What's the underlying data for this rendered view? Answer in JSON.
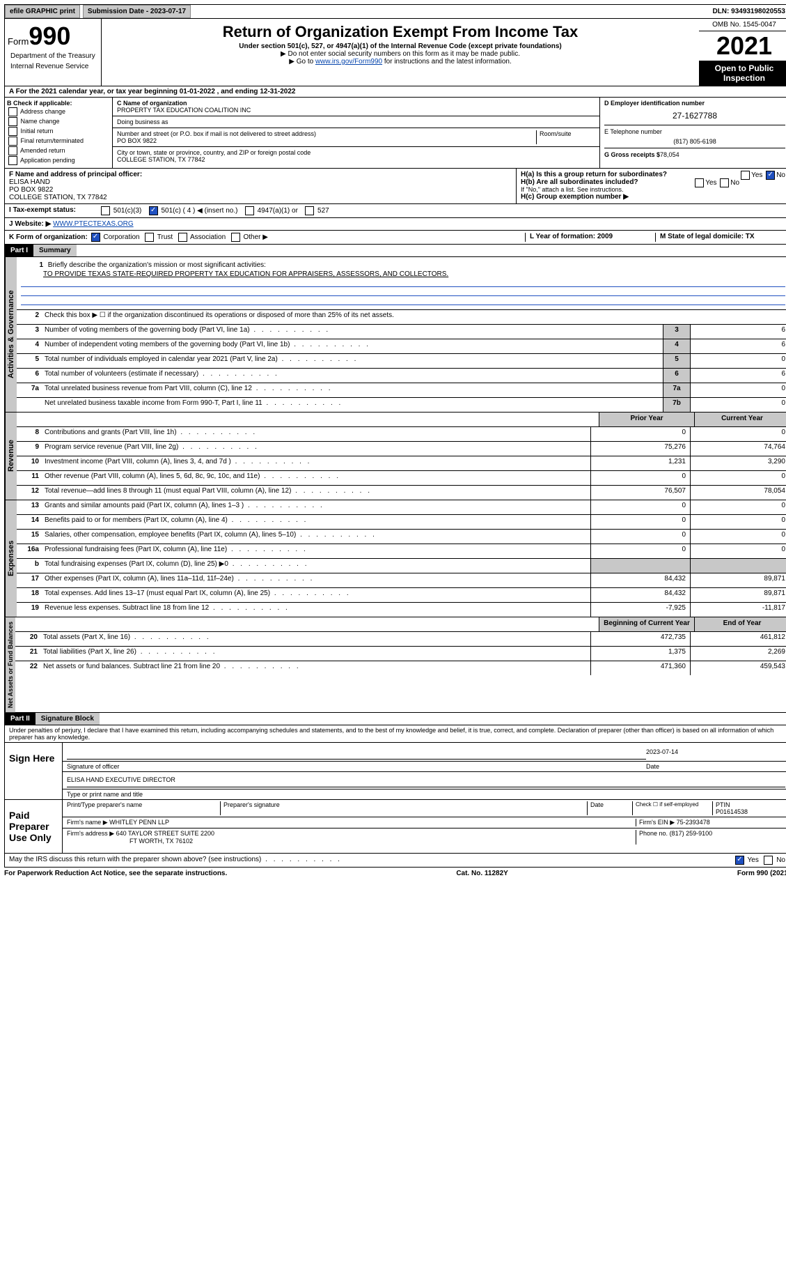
{
  "topbar": {
    "efile": "efile GRAPHIC print",
    "submission_label": "Submission Date - 2023-07-17",
    "dln": "DLN: 93493198020553"
  },
  "header": {
    "form_prefix": "Form",
    "form_no": "990",
    "title": "Return of Organization Exempt From Income Tax",
    "subtitle": "Under section 501(c), 527, or 4947(a)(1) of the Internal Revenue Code (except private foundations)",
    "note1": "▶ Do not enter social security numbers on this form as it may be made public.",
    "note2_pre": "▶ Go to ",
    "note2_link": "www.irs.gov/Form990",
    "note2_post": " for instructions and the latest information.",
    "omb": "OMB No. 1545-0047",
    "year": "2021",
    "inspection": "Open to Public Inspection",
    "dept": "Department of the Treasury",
    "irs": "Internal Revenue Service"
  },
  "rowA": "A For the 2021 calendar year, or tax year beginning 01-01-2022  , and ending 12-31-2022",
  "boxB": {
    "title": "B Check if applicable:",
    "items": [
      "Address change",
      "Name change",
      "Initial return",
      "Final return/terminated",
      "Amended return",
      "Application pending"
    ]
  },
  "boxC": {
    "name_label": "C Name of organization",
    "name": "PROPERTY TAX EDUCATION COALITION INC",
    "dba_label": "Doing business as",
    "addr_label": "Number and street (or P.O. box if mail is not delivered to street address)",
    "room_label": "Room/suite",
    "addr": "PO BOX 9822",
    "city_label": "City or town, state or province, country, and ZIP or foreign postal code",
    "city": "COLLEGE STATION, TX  77842"
  },
  "boxD": {
    "label": "D Employer identification number",
    "ein": "27-1627788",
    "phone_label": "E Telephone number",
    "phone": "(817) 805-6198",
    "gross_label": "G Gross receipts $",
    "gross": "78,054"
  },
  "boxF": {
    "label": "F  Name and address of principal officer:",
    "name": "ELISA HAND",
    "addr1": "PO BOX 9822",
    "addr2": "COLLEGE STATION, TX  77842"
  },
  "boxH": {
    "a": "H(a)  Is this a group return for subordinates?",
    "b": "H(b)  Are all subordinates included?",
    "b_note": "If \"No,\" attach a list. See instructions.",
    "c": "H(c)  Group exemption number ▶",
    "yes": "Yes",
    "no": "No"
  },
  "rowI": {
    "label": "Tax-exempt status:",
    "opt1": "501(c)(3)",
    "opt2": "501(c) ( 4 ) ◀ (insert no.)",
    "opt3": "4947(a)(1) or",
    "opt4": "527"
  },
  "rowJ": {
    "label": "Website: ▶",
    "url": "WWW.PTECTEXAS.ORG"
  },
  "rowK": {
    "label": "K Form of organization:",
    "opts": [
      "Corporation",
      "Trust",
      "Association",
      "Other ▶"
    ]
  },
  "rowL": {
    "label": "L Year of formation: 2009"
  },
  "rowM": {
    "label": "M State of legal domicile: TX"
  },
  "part1": {
    "header": "Part I",
    "title": "Summary",
    "tab_ag": "Activities & Governance",
    "tab_rev": "Revenue",
    "tab_exp": "Expenses",
    "tab_na": "Net Assets or Fund Balances",
    "l1_text": "Briefly describe the organization's mission or most significant activities:",
    "l1_val": "TO PROVIDE TEXAS STATE-REQUIRED PROPERTY TAX EDUCATION FOR APPRAISERS, ASSESSORS, AND COLLECTORS.",
    "l2_text": "Check this box ▶ ☐  if the organization discontinued its operations or disposed of more than 25% of its net assets.",
    "lines_ag": [
      {
        "n": "3",
        "t": "Number of voting members of the governing body (Part VI, line 1a)",
        "b": "3",
        "v": "6"
      },
      {
        "n": "4",
        "t": "Number of independent voting members of the governing body (Part VI, line 1b)",
        "b": "4",
        "v": "6"
      },
      {
        "n": "5",
        "t": "Total number of individuals employed in calendar year 2021 (Part V, line 2a)",
        "b": "5",
        "v": "0"
      },
      {
        "n": "6",
        "t": "Total number of volunteers (estimate if necessary)",
        "b": "6",
        "v": "6"
      },
      {
        "n": "7a",
        "t": "Total unrelated business revenue from Part VIII, column (C), line 12",
        "b": "7a",
        "v": "0"
      },
      {
        "n": "",
        "t": "Net unrelated business taxable income from Form 990-T, Part I, line 11",
        "b": "7b",
        "v": "0"
      }
    ],
    "col_prior": "Prior Year",
    "col_current": "Current Year",
    "lines_rev": [
      {
        "n": "8",
        "t": "Contributions and grants (Part VIII, line 1h)",
        "p": "0",
        "c": "0"
      },
      {
        "n": "9",
        "t": "Program service revenue (Part VIII, line 2g)",
        "p": "75,276",
        "c": "74,764"
      },
      {
        "n": "10",
        "t": "Investment income (Part VIII, column (A), lines 3, 4, and 7d )",
        "p": "1,231",
        "c": "3,290"
      },
      {
        "n": "11",
        "t": "Other revenue (Part VIII, column (A), lines 5, 6d, 8c, 9c, 10c, and 11e)",
        "p": "0",
        "c": "0"
      },
      {
        "n": "12",
        "t": "Total revenue—add lines 8 through 11 (must equal Part VIII, column (A), line 12)",
        "p": "76,507",
        "c": "78,054"
      }
    ],
    "lines_exp": [
      {
        "n": "13",
        "t": "Grants and similar amounts paid (Part IX, column (A), lines 1–3 )",
        "p": "0",
        "c": "0"
      },
      {
        "n": "14",
        "t": "Benefits paid to or for members (Part IX, column (A), line 4)",
        "p": "0",
        "c": "0"
      },
      {
        "n": "15",
        "t": "Salaries, other compensation, employee benefits (Part IX, column (A), lines 5–10)",
        "p": "0",
        "c": "0"
      },
      {
        "n": "16a",
        "t": "Professional fundraising fees (Part IX, column (A), line 11e)",
        "p": "0",
        "c": "0"
      },
      {
        "n": "b",
        "t": "Total fundraising expenses (Part IX, column (D), line 25) ▶0",
        "p": "",
        "c": "",
        "shade": true
      },
      {
        "n": "17",
        "t": "Other expenses (Part IX, column (A), lines 11a–11d, 11f–24e)",
        "p": "84,432",
        "c": "89,871"
      },
      {
        "n": "18",
        "t": "Total expenses. Add lines 13–17 (must equal Part IX, column (A), line 25)",
        "p": "84,432",
        "c": "89,871"
      },
      {
        "n": "19",
        "t": "Revenue less expenses. Subtract line 18 from line 12",
        "p": "-7,925",
        "c": "-11,817"
      }
    ],
    "col_begin": "Beginning of Current Year",
    "col_end": "End of Year",
    "lines_na": [
      {
        "n": "20",
        "t": "Total assets (Part X, line 16)",
        "p": "472,735",
        "c": "461,812"
      },
      {
        "n": "21",
        "t": "Total liabilities (Part X, line 26)",
        "p": "1,375",
        "c": "2,269"
      },
      {
        "n": "22",
        "t": "Net assets or fund balances. Subtract line 21 from line 20",
        "p": "471,360",
        "c": "459,543"
      }
    ]
  },
  "part2": {
    "header": "Part II",
    "title": "Signature Block",
    "perjury": "Under penalties of perjury, I declare that I have examined this return, including accompanying schedules and statements, and to the best of my knowledge and belief, it is true, correct, and complete. Declaration of preparer (other than officer) is based on all information of which preparer has any knowledge.",
    "sign_here": "Sign Here",
    "sig_officer": "Signature of officer",
    "sig_date": "2023-07-14",
    "date_label": "Date",
    "officer_name": "ELISA HAND  EXECUTIVE DIRECTOR",
    "type_name": "Type or print name and title",
    "paid": "Paid Preparer Use Only",
    "prep_name_label": "Print/Type preparer's name",
    "prep_sig_label": "Preparer's signature",
    "check_self": "Check ☐ if self-employed",
    "ptin_label": "PTIN",
    "ptin": "P01614538",
    "firm_name_label": "Firm's name    ▶",
    "firm_name": "WHITLEY PENN LLP",
    "firm_ein_label": "Firm's EIN ▶",
    "firm_ein": "75-2393478",
    "firm_addr_label": "Firm's address ▶",
    "firm_addr": "640 TAYLOR STREET SUITE 2200",
    "firm_city": "FT WORTH, TX  76102",
    "firm_phone_label": "Phone no.",
    "firm_phone": "(817) 259-9100",
    "discuss": "May the IRS discuss this return with the preparer shown above? (see instructions)"
  },
  "footer": {
    "left": "For Paperwork Reduction Act Notice, see the separate instructions.",
    "center": "Cat. No. 11282Y",
    "right": "Form 990 (2021)"
  }
}
